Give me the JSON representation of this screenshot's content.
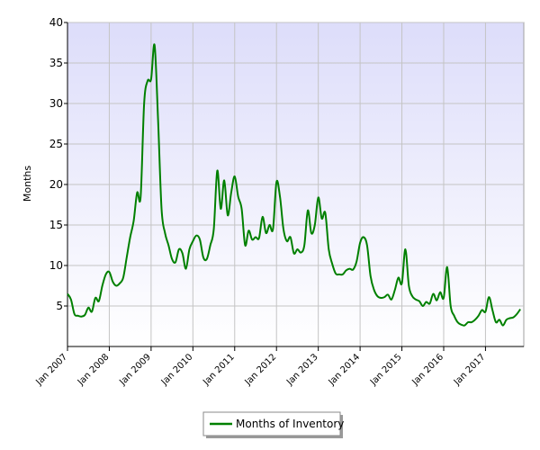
{
  "chart_data": {
    "type": "line",
    "title": "",
    "xlabel": "",
    "ylabel": "Months",
    "ylim": [
      0,
      40
    ],
    "yticks": [
      5,
      10,
      15,
      20,
      25,
      30,
      35,
      40
    ],
    "xlim": [
      "2007-01",
      "2017-12"
    ],
    "x_tick_labels": [
      "Jan 2007",
      "Jan 2008",
      "Jan 2009",
      "Jan 2010",
      "Jan 2011",
      "Jan 2012",
      "Jan 2013",
      "Jan 2014",
      "Jan 2015",
      "Jan 2016",
      "Jan 2017"
    ],
    "grid": true,
    "legend_position": "bottom-center",
    "series": [
      {
        "name": "Months of Inventory",
        "color": "#008000",
        "points": [
          [
            "2007-01",
            6.5
          ],
          [
            "2007-02",
            5.8
          ],
          [
            "2007-03",
            4.0
          ],
          [
            "2007-04",
            3.8
          ],
          [
            "2007-05",
            3.7
          ],
          [
            "2007-06",
            3.9
          ],
          [
            "2007-07",
            4.8
          ],
          [
            "2007-08",
            4.3
          ],
          [
            "2007-09",
            6.0
          ],
          [
            "2007-10",
            5.6
          ],
          [
            "2007-11",
            7.5
          ],
          [
            "2007-12",
            8.9
          ],
          [
            "2008-01",
            9.2
          ],
          [
            "2008-02",
            8.0
          ],
          [
            "2008-03",
            7.5
          ],
          [
            "2008-04",
            7.8
          ],
          [
            "2008-05",
            8.5
          ],
          [
            "2008-06",
            11.0
          ],
          [
            "2008-07",
            13.5
          ],
          [
            "2008-08",
            15.5
          ],
          [
            "2008-09",
            19.0
          ],
          [
            "2008-10",
            18.5
          ],
          [
            "2008-11",
            30.0
          ],
          [
            "2008-12",
            32.8
          ],
          [
            "2009-01",
            33.0
          ],
          [
            "2009-02",
            37.2
          ],
          [
            "2009-03",
            28.0
          ],
          [
            "2009-04",
            17.0
          ],
          [
            "2009-05",
            14.0
          ],
          [
            "2009-06",
            12.5
          ],
          [
            "2009-07",
            10.8
          ],
          [
            "2009-08",
            10.4
          ],
          [
            "2009-09",
            12.0
          ],
          [
            "2009-10",
            11.5
          ],
          [
            "2009-11",
            9.6
          ],
          [
            "2009-12",
            12.0
          ],
          [
            "2010-01",
            13.0
          ],
          [
            "2010-02",
            13.7
          ],
          [
            "2010-03",
            13.2
          ],
          [
            "2010-04",
            11.0
          ],
          [
            "2010-05",
            10.8
          ],
          [
            "2010-06",
            12.5
          ],
          [
            "2010-07",
            14.5
          ],
          [
            "2010-08",
            21.7
          ],
          [
            "2010-09",
            17.0
          ],
          [
            "2010-10",
            20.5
          ],
          [
            "2010-11",
            16.2
          ],
          [
            "2010-12",
            19.0
          ],
          [
            "2011-01",
            21.0
          ],
          [
            "2011-02",
            18.5
          ],
          [
            "2011-03",
            17.0
          ],
          [
            "2011-04",
            12.5
          ],
          [
            "2011-05",
            14.3
          ],
          [
            "2011-06",
            13.2
          ],
          [
            "2011-07",
            13.5
          ],
          [
            "2011-08",
            13.4
          ],
          [
            "2011-09",
            16.0
          ],
          [
            "2011-10",
            14.0
          ],
          [
            "2011-11",
            15.0
          ],
          [
            "2011-12",
            14.5
          ],
          [
            "2012-01",
            20.3
          ],
          [
            "2012-02",
            18.5
          ],
          [
            "2012-03",
            14.5
          ],
          [
            "2012-04",
            13.0
          ],
          [
            "2012-05",
            13.5
          ],
          [
            "2012-06",
            11.5
          ],
          [
            "2012-07",
            12.0
          ],
          [
            "2012-08",
            11.6
          ],
          [
            "2012-09",
            12.5
          ],
          [
            "2012-10",
            16.8
          ],
          [
            "2012-11",
            14.0
          ],
          [
            "2012-12",
            15.0
          ],
          [
            "2013-01",
            18.4
          ],
          [
            "2013-02",
            15.8
          ],
          [
            "2013-03",
            16.5
          ],
          [
            "2013-04",
            12.0
          ],
          [
            "2013-05",
            10.2
          ],
          [
            "2013-06",
            9.0
          ],
          [
            "2013-07",
            8.9
          ],
          [
            "2013-08",
            8.9
          ],
          [
            "2013-09",
            9.4
          ],
          [
            "2013-10",
            9.6
          ],
          [
            "2013-11",
            9.5
          ],
          [
            "2013-12",
            10.5
          ],
          [
            "2014-01",
            12.8
          ],
          [
            "2014-02",
            13.5
          ],
          [
            "2014-03",
            12.5
          ],
          [
            "2014-04",
            8.7
          ],
          [
            "2014-05",
            7.0
          ],
          [
            "2014-06",
            6.2
          ],
          [
            "2014-07",
            6.0
          ],
          [
            "2014-08",
            6.1
          ],
          [
            "2014-09",
            6.4
          ],
          [
            "2014-10",
            5.8
          ],
          [
            "2014-11",
            7.0
          ],
          [
            "2014-12",
            8.5
          ],
          [
            "2015-01",
            7.8
          ],
          [
            "2015-02",
            12.0
          ],
          [
            "2015-03",
            7.5
          ],
          [
            "2015-04",
            6.2
          ],
          [
            "2015-05",
            5.8
          ],
          [
            "2015-06",
            5.6
          ],
          [
            "2015-07",
            5.0
          ],
          [
            "2015-08",
            5.5
          ],
          [
            "2015-09",
            5.3
          ],
          [
            "2015-10",
            6.5
          ],
          [
            "2015-11",
            5.7
          ],
          [
            "2015-12",
            6.7
          ],
          [
            "2016-01",
            6.0
          ],
          [
            "2016-02",
            9.8
          ],
          [
            "2016-03",
            5.0
          ],
          [
            "2016-04",
            3.8
          ],
          [
            "2016-05",
            3.0
          ],
          [
            "2016-06",
            2.7
          ],
          [
            "2016-07",
            2.6
          ],
          [
            "2016-08",
            3.0
          ],
          [
            "2016-09",
            3.0
          ],
          [
            "2016-10",
            3.3
          ],
          [
            "2016-11",
            3.8
          ],
          [
            "2016-12",
            4.5
          ],
          [
            "2017-01",
            4.3
          ],
          [
            "2017-02",
            6.1
          ],
          [
            "2017-03",
            4.5
          ],
          [
            "2017-04",
            3.0
          ],
          [
            "2017-05",
            3.3
          ],
          [
            "2017-06",
            2.6
          ],
          [
            "2017-07",
            3.3
          ],
          [
            "2017-08",
            3.5
          ],
          [
            "2017-09",
            3.6
          ],
          [
            "2017-10",
            4.0
          ],
          [
            "2017-11",
            4.6
          ]
        ]
      }
    ]
  }
}
